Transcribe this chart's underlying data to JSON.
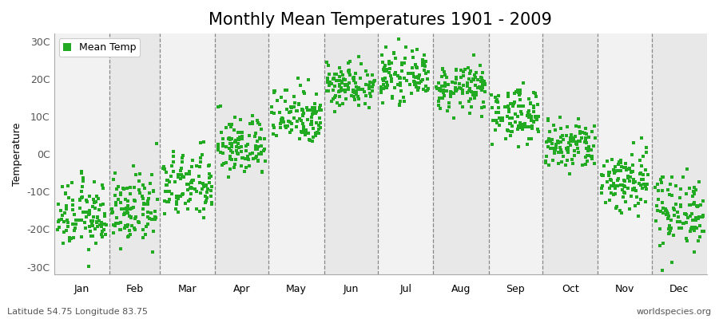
{
  "title": "Monthly Mean Temperatures 1901 - 2009",
  "ylabel": "Temperature",
  "month_labels": [
    "Jan",
    "Feb",
    "Mar",
    "Apr",
    "May",
    "Jun",
    "Jul",
    "Aug",
    "Sep",
    "Oct",
    "Nov",
    "Dec"
  ],
  "ytick_labels": [
    "-30C",
    "-20C",
    "-10C",
    "0C",
    "10C",
    "20C",
    "30C"
  ],
  "ytick_values": [
    -30,
    -20,
    -10,
    0,
    10,
    20,
    30
  ],
  "ylim": [
    -32,
    32
  ],
  "xlim": [
    0,
    366
  ],
  "legend_label": "Mean Temp",
  "marker_color": "#22aa22",
  "bg_color": "#ffffff",
  "band_color_light": "#f2f2f2",
  "band_color_dark": "#e8e8e8",
  "subtitle_left": "Latitude 54.75 Longitude 83.75",
  "subtitle_right": "worldspecies.org",
  "title_fontsize": 15,
  "axis_fontsize": 9,
  "label_fontsize": 9,
  "monthly_means": [
    -16.5,
    -15.0,
    -8.5,
    2.0,
    10.5,
    18.5,
    20.5,
    17.5,
    10.5,
    2.0,
    -7.0,
    -15.0
  ],
  "monthly_stds": [
    4.5,
    4.5,
    4.5,
    4.0,
    4.0,
    3.0,
    3.0,
    3.0,
    3.5,
    3.5,
    4.5,
    5.0
  ],
  "month_days": [
    31,
    28,
    31,
    30,
    31,
    30,
    31,
    31,
    30,
    31,
    30,
    31
  ],
  "n_years": 109
}
